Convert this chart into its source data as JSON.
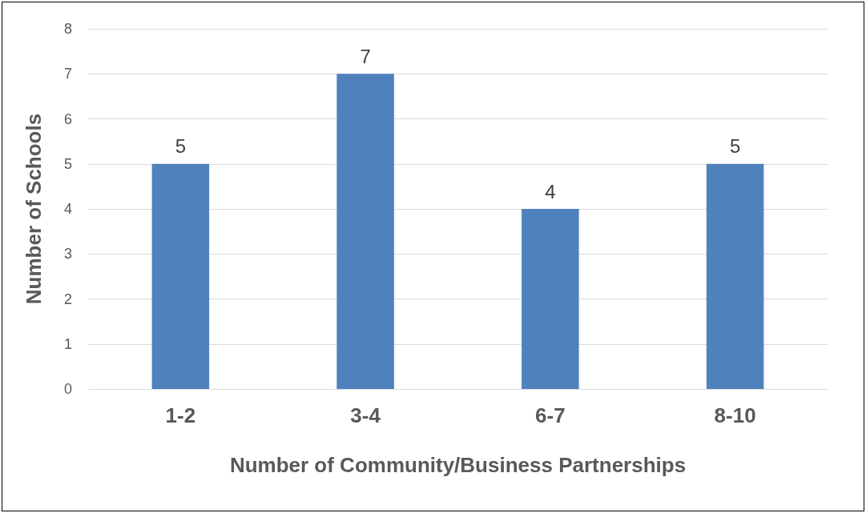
{
  "chart_data": {
    "type": "bar",
    "xlabel": "Number of Community/Business Partnerships",
    "ylabel": "Number of Schools",
    "categories": [
      "1-2",
      "3-4",
      "6-7",
      "8-10"
    ],
    "values": [
      5,
      7,
      4,
      5
    ],
    "color": "#4f81bd",
    "ylim": [
      0,
      8
    ],
    "yticks": [
      0,
      1,
      2,
      3,
      4,
      5,
      6,
      7,
      8
    ],
    "grid": "y",
    "data_labels": true
  }
}
